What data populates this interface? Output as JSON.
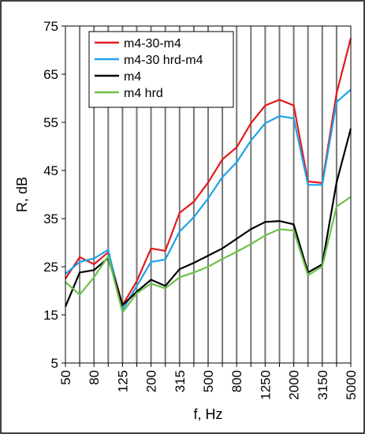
{
  "chart_data": {
    "type": "line",
    "xlabel": "f, Hz",
    "ylabel": "R, dB",
    "ylim": [
      5,
      75
    ],
    "yticks": [
      5,
      15,
      25,
      35,
      45,
      55,
      65,
      75
    ],
    "x": [
      50,
      63,
      80,
      100,
      125,
      160,
      200,
      250,
      315,
      400,
      500,
      630,
      800,
      1000,
      1250,
      1600,
      2000,
      2500,
      3150,
      4000,
      5000
    ],
    "x_tick_labels": [
      "50",
      "",
      "80",
      "",
      "125",
      "",
      "200",
      "",
      "315",
      "",
      "500",
      "",
      "800",
      "",
      "1250",
      "",
      "2000",
      "",
      "3150",
      "",
      "5000"
    ],
    "grid": "vertical",
    "legend_position": "top-left",
    "series": [
      {
        "name": "m4-30-m4",
        "color": "#e41a1c",
        "values": [
          22.5,
          27,
          25.5,
          28,
          17,
          22,
          28.8,
          28.3,
          36.2,
          38.5,
          42.5,
          47.3,
          49.8,
          54.8,
          58.5,
          59.7,
          58.5,
          42.7,
          42.4,
          61,
          72.5
        ]
      },
      {
        "name": "m4-30 hrd-m4",
        "color": "#1ba3e8",
        "values": [
          23.5,
          26,
          26.7,
          28.5,
          16,
          21,
          26,
          26.5,
          32.3,
          35.3,
          39.2,
          43.6,
          46.7,
          51.2,
          54.8,
          56.3,
          55.8,
          42,
          42,
          59.2,
          61.8
        ]
      },
      {
        "name": "m4",
        "color": "#000000",
        "values": [
          16.7,
          23.8,
          24.3,
          26.8,
          17,
          19.8,
          22.3,
          21,
          24.5,
          25.8,
          27.3,
          28.8,
          30.8,
          32.8,
          34.3,
          34.5,
          33.8,
          23.8,
          25.5,
          42.5,
          53.7
        ]
      },
      {
        "name": "m4 hrd",
        "color": "#6cc24a",
        "values": [
          21.8,
          19.2,
          22.8,
          27.2,
          15.5,
          19.5,
          21.5,
          20.5,
          22.8,
          23.8,
          25,
          26.6,
          28.1,
          29.7,
          31.5,
          32.8,
          32.5,
          23.2,
          25.1,
          37.5,
          39.5
        ]
      }
    ]
  }
}
